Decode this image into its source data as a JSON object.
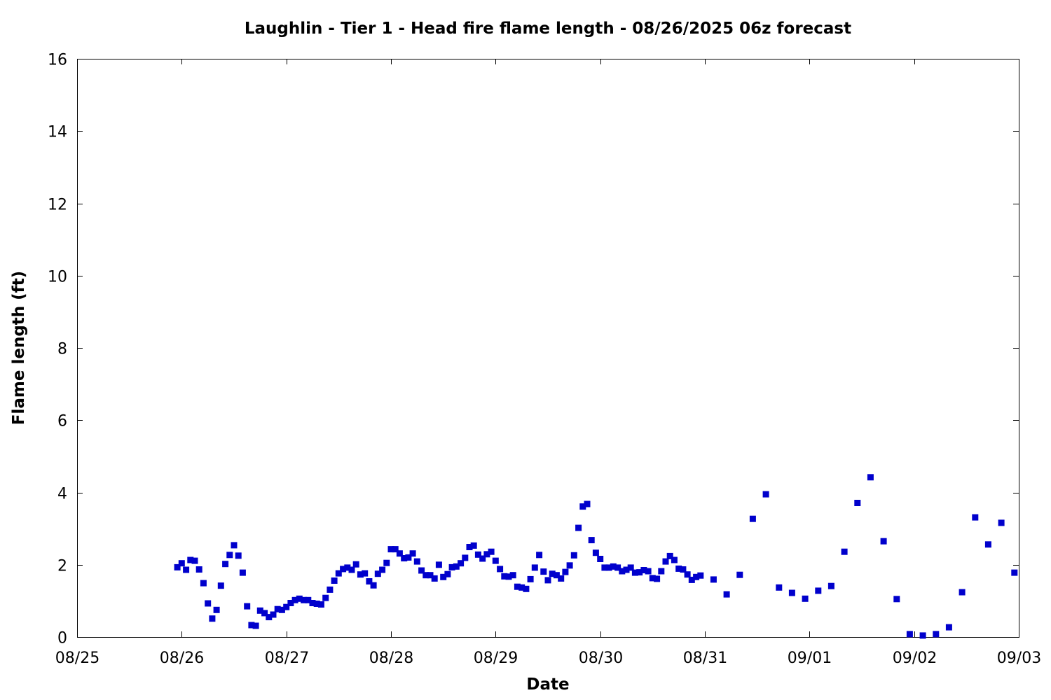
{
  "chart_data": {
    "type": "scatter",
    "title": "Laughlin - Tier 1 - Head fire flame length - 08/26/2025 06z forecast",
    "xlabel": "Date",
    "ylabel": "Flame length (ft)",
    "xlim": [
      "2025-08-25T00:00",
      "2025-09-03T00:00"
    ],
    "ylim": [
      0,
      16
    ],
    "x_tick_labels": [
      "08/25",
      "08/26",
      "08/27",
      "08/28",
      "08/29",
      "08/30",
      "08/31",
      "09/01",
      "09/02",
      "09/03"
    ],
    "y_tick_labels": [
      "0",
      "2",
      "4",
      "6",
      "8",
      "10",
      "12",
      "14",
      "16"
    ],
    "grid": false,
    "legend": "none",
    "marker_color": "#0000cc",
    "marker": "square",
    "series": [
      {
        "points": [
          [
            "2025-08-25T23:00",
            1.93
          ],
          [
            "2025-08-26T00:00",
            2.04
          ],
          [
            "2025-08-26T01:00",
            1.86
          ],
          [
            "2025-08-26T02:00",
            2.13
          ],
          [
            "2025-08-26T03:00",
            2.11
          ],
          [
            "2025-08-26T04:00",
            1.87
          ],
          [
            "2025-08-26T05:00",
            1.49
          ],
          [
            "2025-08-26T06:00",
            0.93
          ],
          [
            "2025-08-26T07:00",
            0.51
          ],
          [
            "2025-08-26T08:00",
            0.75
          ],
          [
            "2025-08-26T09:00",
            1.42
          ],
          [
            "2025-08-26T10:00",
            2.02
          ],
          [
            "2025-08-26T11:00",
            2.27
          ],
          [
            "2025-08-26T12:00",
            2.54
          ],
          [
            "2025-08-26T13:00",
            2.25
          ],
          [
            "2025-08-26T14:00",
            1.78
          ],
          [
            "2025-08-26T15:00",
            0.85
          ],
          [
            "2025-08-26T16:00",
            0.33
          ],
          [
            "2025-08-26T17:00",
            0.31
          ],
          [
            "2025-08-26T18:00",
            0.73
          ],
          [
            "2025-08-26T19:00",
            0.66
          ],
          [
            "2025-08-26T20:00",
            0.55
          ],
          [
            "2025-08-26T21:00",
            0.62
          ],
          [
            "2025-08-26T22:00",
            0.77
          ],
          [
            "2025-08-26T23:00",
            0.75
          ],
          [
            "2025-08-27T00:00",
            0.83
          ],
          [
            "2025-08-27T01:00",
            0.94
          ],
          [
            "2025-08-27T02:00",
            1.02
          ],
          [
            "2025-08-27T03:00",
            1.06
          ],
          [
            "2025-08-27T04:00",
            1.02
          ],
          [
            "2025-08-27T05:00",
            1.02
          ],
          [
            "2025-08-27T06:00",
            0.94
          ],
          [
            "2025-08-27T07:00",
            0.92
          ],
          [
            "2025-08-27T08:00",
            0.9
          ],
          [
            "2025-08-27T09:00",
            1.08
          ],
          [
            "2025-08-27T10:00",
            1.31
          ],
          [
            "2025-08-27T11:00",
            1.56
          ],
          [
            "2025-08-27T12:00",
            1.76
          ],
          [
            "2025-08-27T13:00",
            1.88
          ],
          [
            "2025-08-27T14:00",
            1.92
          ],
          [
            "2025-08-27T15:00",
            1.86
          ],
          [
            "2025-08-27T16:00",
            2.01
          ],
          [
            "2025-08-27T17:00",
            1.73
          ],
          [
            "2025-08-27T18:00",
            1.76
          ],
          [
            "2025-08-27T19:00",
            1.54
          ],
          [
            "2025-08-27T20:00",
            1.43
          ],
          [
            "2025-08-27T21:00",
            1.75
          ],
          [
            "2025-08-27T22:00",
            1.86
          ],
          [
            "2025-08-27T23:00",
            2.05
          ],
          [
            "2025-08-28T00:00",
            2.43
          ],
          [
            "2025-08-28T01:00",
            2.43
          ],
          [
            "2025-08-28T02:00",
            2.31
          ],
          [
            "2025-08-28T03:00",
            2.18
          ],
          [
            "2025-08-28T04:00",
            2.2
          ],
          [
            "2025-08-28T05:00",
            2.31
          ],
          [
            "2025-08-28T06:00",
            2.09
          ],
          [
            "2025-08-28T07:00",
            1.84
          ],
          [
            "2025-08-28T08:00",
            1.71
          ],
          [
            "2025-08-28T09:00",
            1.71
          ],
          [
            "2025-08-28T10:00",
            1.62
          ],
          [
            "2025-08-28T11:00",
            2.0
          ],
          [
            "2025-08-28T12:00",
            1.66
          ],
          [
            "2025-08-28T13:00",
            1.74
          ],
          [
            "2025-08-28T14:00",
            1.93
          ],
          [
            "2025-08-28T15:00",
            1.95
          ],
          [
            "2025-08-28T16:00",
            2.04
          ],
          [
            "2025-08-28T17:00",
            2.19
          ],
          [
            "2025-08-28T18:00",
            2.49
          ],
          [
            "2025-08-28T19:00",
            2.53
          ],
          [
            "2025-08-28T20:00",
            2.28
          ],
          [
            "2025-08-28T21:00",
            2.17
          ],
          [
            "2025-08-28T22:00",
            2.29
          ],
          [
            "2025-08-28T23:00",
            2.36
          ],
          [
            "2025-08-29T00:00",
            2.11
          ],
          [
            "2025-08-29T01:00",
            1.88
          ],
          [
            "2025-08-29T02:00",
            1.68
          ],
          [
            "2025-08-29T03:00",
            1.67
          ],
          [
            "2025-08-29T04:00",
            1.71
          ],
          [
            "2025-08-29T05:00",
            1.39
          ],
          [
            "2025-08-29T06:00",
            1.37
          ],
          [
            "2025-08-29T07:00",
            1.33
          ],
          [
            "2025-08-29T08:00",
            1.6
          ],
          [
            "2025-08-29T09:00",
            1.92
          ],
          [
            "2025-08-29T10:00",
            2.27
          ],
          [
            "2025-08-29T11:00",
            1.81
          ],
          [
            "2025-08-29T12:00",
            1.57
          ],
          [
            "2025-08-29T13:00",
            1.75
          ],
          [
            "2025-08-29T14:00",
            1.71
          ],
          [
            "2025-08-29T15:00",
            1.62
          ],
          [
            "2025-08-29T16:00",
            1.8
          ],
          [
            "2025-08-29T17:00",
            1.98
          ],
          [
            "2025-08-29T18:00",
            2.26
          ],
          [
            "2025-08-29T19:00",
            3.02
          ],
          [
            "2025-08-29T20:00",
            3.61
          ],
          [
            "2025-08-29T21:00",
            3.68
          ],
          [
            "2025-08-29T22:00",
            2.68
          ],
          [
            "2025-08-29T23:00",
            2.33
          ],
          [
            "2025-08-30T00:00",
            2.16
          ],
          [
            "2025-08-30T01:00",
            1.92
          ],
          [
            "2025-08-30T02:00",
            1.92
          ],
          [
            "2025-08-30T03:00",
            1.95
          ],
          [
            "2025-08-30T04:00",
            1.92
          ],
          [
            "2025-08-30T05:00",
            1.82
          ],
          [
            "2025-08-30T06:00",
            1.86
          ],
          [
            "2025-08-30T07:00",
            1.92
          ],
          [
            "2025-08-30T08:00",
            1.78
          ],
          [
            "2025-08-30T09:00",
            1.79
          ],
          [
            "2025-08-30T10:00",
            1.85
          ],
          [
            "2025-08-30T11:00",
            1.82
          ],
          [
            "2025-08-30T12:00",
            1.63
          ],
          [
            "2025-08-30T13:00",
            1.61
          ],
          [
            "2025-08-30T14:00",
            1.82
          ],
          [
            "2025-08-30T15:00",
            2.09
          ],
          [
            "2025-08-30T16:00",
            2.24
          ],
          [
            "2025-08-30T17:00",
            2.13
          ],
          [
            "2025-08-30T18:00",
            1.89
          ],
          [
            "2025-08-30T19:00",
            1.87
          ],
          [
            "2025-08-30T20:00",
            1.73
          ],
          [
            "2025-08-30T21:00",
            1.58
          ],
          [
            "2025-08-30T22:00",
            1.66
          ],
          [
            "2025-08-30T23:00",
            1.7
          ],
          [
            "2025-08-31T02:00",
            1.59
          ],
          [
            "2025-08-31T05:00",
            1.18
          ],
          [
            "2025-08-31T08:00",
            1.72
          ],
          [
            "2025-08-31T11:00",
            3.27
          ],
          [
            "2025-08-31T14:00",
            3.95
          ],
          [
            "2025-08-31T17:00",
            1.37
          ],
          [
            "2025-08-31T20:00",
            1.22
          ],
          [
            "2025-08-31T23:00",
            1.06
          ],
          [
            "2025-09-01T02:00",
            1.28
          ],
          [
            "2025-09-01T05:00",
            1.41
          ],
          [
            "2025-09-01T08:00",
            2.36
          ],
          [
            "2025-09-01T11:00",
            3.71
          ],
          [
            "2025-09-01T14:00",
            4.42
          ],
          [
            "2025-09-01T17:00",
            2.65
          ],
          [
            "2025-09-01T20:00",
            1.05
          ],
          [
            "2025-09-01T23:00",
            0.08
          ],
          [
            "2025-09-02T02:00",
            0.04
          ],
          [
            "2025-09-02T05:00",
            0.08
          ],
          [
            "2025-09-02T08:00",
            0.27
          ],
          [
            "2025-09-02T11:00",
            1.24
          ],
          [
            "2025-09-02T14:00",
            3.31
          ],
          [
            "2025-09-02T17:00",
            2.56
          ],
          [
            "2025-09-02T20:00",
            3.16
          ],
          [
            "2025-09-02T23:00",
            1.78
          ]
        ]
      }
    ]
  }
}
